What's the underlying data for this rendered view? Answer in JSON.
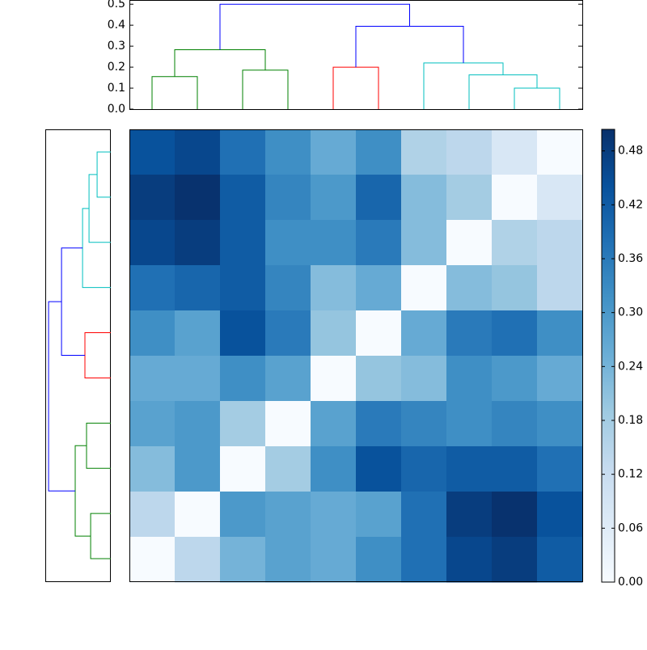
{
  "chart_data": [
    {
      "type": "dendrogram",
      "orientation": "top",
      "xlim": [
        -0.5,
        9.5
      ],
      "ylim": [
        0,
        0.52
      ],
      "yticks": [
        {
          "value": 0,
          "label": "0.0"
        },
        0.1,
        0.2,
        0.3,
        0.4,
        0.5
      ],
      "links": [
        {
          "color": "#008000",
          "pos": [
            0,
            0,
            1,
            1
          ],
          "height": [
            0,
            0.155,
            0.155,
            0
          ]
        },
        {
          "color": "#008000",
          "pos": [
            2,
            2,
            3,
            3
          ],
          "height": [
            0,
            0.186,
            0.186,
            0
          ]
        },
        {
          "color": "#008000",
          "pos": [
            0.5,
            0.5,
            2.5,
            2.5
          ],
          "height": [
            0.155,
            0.283,
            0.283,
            0.186
          ]
        },
        {
          "color": "#ff0000",
          "pos": [
            4,
            4,
            5,
            5
          ],
          "height": [
            0,
            0.2,
            0.2,
            0
          ]
        },
        {
          "color": "#00bfbf",
          "pos": [
            8,
            8,
            9,
            9
          ],
          "height": [
            0,
            0.1,
            0.1,
            0
          ]
        },
        {
          "color": "#00bfbf",
          "pos": [
            7,
            7,
            8.5,
            8.5
          ],
          "height": [
            0,
            0.163,
            0.163,
            0.1
          ]
        },
        {
          "color": "#00bfbf",
          "pos": [
            6,
            6,
            7.75,
            7.75
          ],
          "height": [
            0,
            0.22,
            0.22,
            0.163
          ]
        },
        {
          "color": "#0000ff",
          "pos": [
            4.5,
            4.5,
            6.875,
            6.875
          ],
          "height": [
            0.2,
            0.395,
            0.395,
            0.22
          ]
        },
        {
          "color": "#0000ff",
          "pos": [
            1.5,
            1.5,
            5.6875,
            5.6875
          ],
          "height": [
            0.283,
            0.5,
            0.5,
            0.395
          ]
        }
      ]
    },
    {
      "type": "heatmap",
      "colors": [
        "#f7fbff",
        "#deebf7",
        "#c6dbef",
        "#9ecae1",
        "#6baed6",
        "#4292c6",
        "#2171b5",
        "#08519c",
        "#08306b"
      ],
      "clim": [
        0,
        0.504
      ],
      "cticks": [
        {
          "value": 0,
          "label": "0.00"
        },
        0.06,
        0.12,
        0.18,
        0.24,
        {
          "value": 0.3,
          "label": "0.30"
        },
        0.36,
        0.42,
        0.48
      ],
      "values": [
        [
          0.44,
          0.46,
          0.38,
          0.32,
          0.26,
          0.32,
          0.16,
          0.14,
          0.08,
          0.0
        ],
        [
          0.48,
          0.5,
          0.42,
          0.34,
          0.3,
          0.4,
          0.22,
          0.18,
          0.0,
          0.08
        ],
        [
          0.46,
          0.48,
          0.42,
          0.32,
          0.32,
          0.36,
          0.22,
          0.0,
          0.16,
          0.14
        ],
        [
          0.38,
          0.4,
          0.42,
          0.34,
          0.22,
          0.26,
          0.0,
          0.22,
          0.2,
          0.14
        ],
        [
          0.32,
          0.28,
          0.44,
          0.36,
          0.2,
          0.0,
          0.26,
          0.36,
          0.38,
          0.32
        ],
        [
          0.26,
          0.26,
          0.32,
          0.28,
          0.0,
          0.2,
          0.22,
          0.32,
          0.3,
          0.26
        ],
        [
          0.28,
          0.3,
          0.18,
          0.0,
          0.28,
          0.36,
          0.34,
          0.32,
          0.34,
          0.32
        ],
        [
          0.22,
          0.3,
          0.0,
          0.18,
          0.32,
          0.44,
          0.4,
          0.42,
          0.42,
          0.38
        ],
        [
          0.14,
          0.0,
          0.3,
          0.28,
          0.26,
          0.28,
          0.38,
          0.48,
          0.5,
          0.44
        ],
        [
          0.0,
          0.14,
          0.24,
          0.28,
          0.26,
          0.32,
          0.38,
          0.46,
          0.48,
          0.42
        ]
      ]
    },
    {
      "type": "dendrogram",
      "orientation": "left",
      "xlim": [
        0.52,
        0
      ],
      "ylim": [
        9.5,
        -0.5
      ],
      "links": [
        {
          "color": "#00bfbf",
          "pos": [
            0,
            0,
            1,
            1
          ],
          "height": [
            0,
            0.11,
            0.11,
            0
          ]
        },
        {
          "color": "#00bfbf",
          "pos": [
            0.5,
            0.5,
            2,
            2
          ],
          "height": [
            0.11,
            0.175,
            0.175,
            0
          ]
        },
        {
          "color": "#00bfbf",
          "pos": [
            1.25,
            1.25,
            3,
            3
          ],
          "height": [
            0.175,
            0.227,
            0.227,
            0
          ]
        },
        {
          "color": "#ff0000",
          "pos": [
            4,
            4,
            5,
            5
          ],
          "height": [
            0,
            0.208,
            0.208,
            0
          ]
        },
        {
          "color": "#0000ff",
          "pos": [
            2.125,
            2.125,
            4.5,
            4.5
          ],
          "height": [
            0.227,
            0.396,
            0.396,
            0.208
          ]
        },
        {
          "color": "#008000",
          "pos": [
            6,
            6,
            7,
            7
          ],
          "height": [
            0,
            0.195,
            0.195,
            0
          ]
        },
        {
          "color": "#008000",
          "pos": [
            8,
            8,
            9,
            9
          ],
          "height": [
            0,
            0.162,
            0.162,
            0
          ]
        },
        {
          "color": "#008000",
          "pos": [
            6.5,
            6.5,
            8.5,
            8.5
          ],
          "height": [
            0.195,
            0.286,
            0.286,
            0.162
          ]
        },
        {
          "color": "#0000ff",
          "pos": [
            3.3125,
            3.3125,
            7.5,
            7.5
          ],
          "height": [
            0.396,
            0.5,
            0.5,
            0.286
          ]
        }
      ]
    }
  ]
}
